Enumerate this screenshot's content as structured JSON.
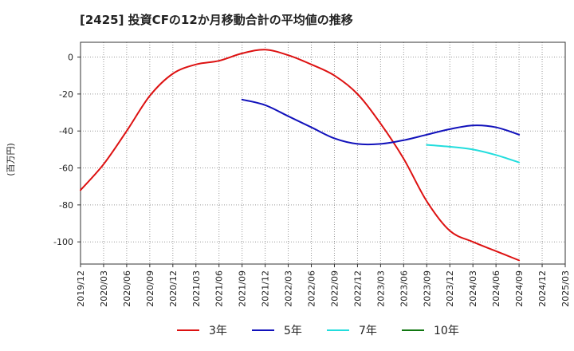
{
  "chart_data": {
    "type": "line",
    "title": "[2425]  投資CFの12か月移動合計の平均値の推移",
    "ylabel": "(百万円)",
    "xlabel": "",
    "ylim": [
      -112,
      8
    ],
    "yticks": [
      0,
      -20,
      -40,
      -60,
      -80,
      -100
    ],
    "x_tick_labels": [
      "2019/12",
      "2020/03",
      "2020/06",
      "2020/09",
      "2020/12",
      "2021/03",
      "2021/06",
      "2021/09",
      "2021/12",
      "2022/03",
      "2022/06",
      "2022/09",
      "2022/12",
      "2023/03",
      "2023/06",
      "2023/09",
      "2023/12",
      "2024/03",
      "2024/06",
      "2024/09",
      "2024/12",
      "2025/03"
    ],
    "grid": true,
    "legend_position": "bottom",
    "colors": {
      "3年": "#dd1111",
      "5年": "#1111bb",
      "7年": "#22dddd",
      "10年": "#117711"
    },
    "series": [
      {
        "name": "3年",
        "x": [
          "2019/12",
          "2020/03",
          "2020/06",
          "2020/09",
          "2020/12",
          "2021/03",
          "2021/06",
          "2021/09",
          "2021/12",
          "2022/03",
          "2022/06",
          "2022/09",
          "2022/12",
          "2023/03",
          "2023/06",
          "2023/09",
          "2023/12",
          "2024/03",
          "2024/06",
          "2024/09"
        ],
        "values": [
          -72,
          -58,
          -40,
          -21,
          -9,
          -4,
          -2,
          2,
          4,
          1,
          -4,
          -10,
          -20,
          -36,
          -55,
          -78,
          -94,
          -100,
          -105,
          -110
        ]
      },
      {
        "name": "5年",
        "x": [
          "2021/09",
          "2021/12",
          "2022/03",
          "2022/06",
          "2022/09",
          "2022/12",
          "2023/03",
          "2023/06",
          "2023/09",
          "2023/12",
          "2024/03",
          "2024/06",
          "2024/09"
        ],
        "values": [
          -23,
          -26,
          -32,
          -38,
          -44,
          -47,
          -47,
          -45,
          -42,
          -39,
          -37,
          -38,
          -42
        ]
      },
      {
        "name": "7年",
        "x": [
          "2023/09",
          "2023/12",
          "2024/03",
          "2024/06",
          "2024/09"
        ],
        "values": [
          -47.5,
          -48.5,
          -50,
          -53,
          -57
        ]
      },
      {
        "name": "10年",
        "x": [],
        "values": []
      }
    ]
  }
}
